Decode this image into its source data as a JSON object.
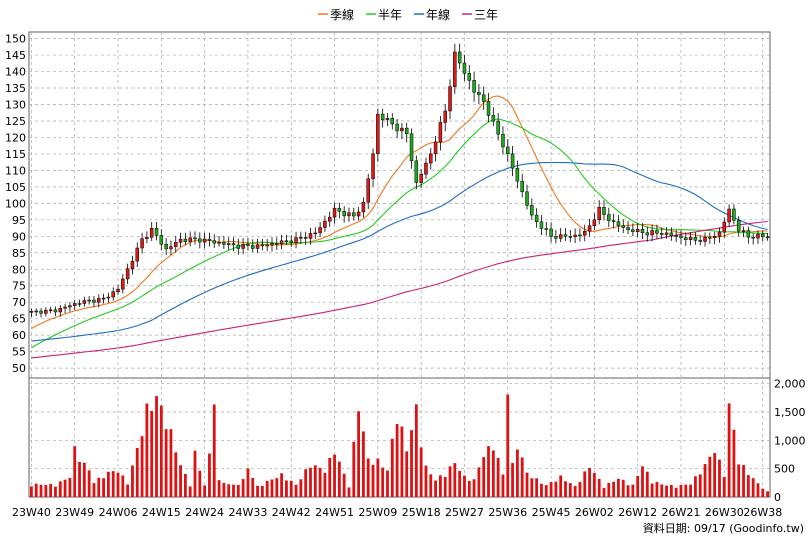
{
  "legend": [
    {
      "label": "季線",
      "color": "#f07820"
    },
    {
      "label": "半年",
      "color": "#22cc22"
    },
    {
      "label": "年線",
      "color": "#1f6fc4"
    },
    {
      "label": "三年",
      "color": "#cc2277"
    }
  ],
  "source_label": "資料日期: 09/17  (Goodinfo.tw)",
  "colors": {
    "up": "#e01818",
    "down": "#1caa1c",
    "volume": "#dd1111",
    "grid": "#a8a8a8",
    "frame": "#606060"
  },
  "chart_data": {
    "type": "candlestick",
    "price_axis": {
      "ticks": [
        50,
        55,
        60,
        65,
        70,
        75,
        80,
        85,
        90,
        95,
        100,
        105,
        110,
        115,
        120,
        125,
        130,
        135,
        140,
        145,
        150
      ],
      "range": [
        47,
        152
      ]
    },
    "volume_axis": {
      "ticks": [
        0,
        500,
        1000,
        1500,
        2000
      ],
      "tick_labels": [
        "0",
        "500",
        "1,000",
        "1,500",
        "2,000"
      ],
      "range": [
        0,
        2100
      ]
    },
    "x_axis": {
      "labels": [
        "23W40",
        "23W49",
        "24W06",
        "24W15",
        "24W24",
        "24W33",
        "24W42",
        "24W51",
        "25W09",
        "25W18",
        "25W27",
        "25W36",
        "25W45",
        "26W02",
        "26W12",
        "26W21",
        "26W30",
        "26W38"
      ],
      "label_week_index": [
        0,
        9,
        18,
        27,
        36,
        45,
        54,
        63,
        72,
        81,
        90,
        99,
        108,
        117,
        126,
        135,
        144,
        152
      ],
      "weeks": 154
    },
    "price_anchors": [
      [
        0,
        67
      ],
      [
        5,
        67.5
      ],
      [
        10,
        70
      ],
      [
        15,
        71
      ],
      [
        18,
        74
      ],
      [
        20,
        80
      ],
      [
        23,
        89
      ],
      [
        25,
        92
      ],
      [
        28,
        86
      ],
      [
        31,
        89
      ],
      [
        35,
        89
      ],
      [
        39,
        88
      ],
      [
        43,
        87
      ],
      [
        47,
        87
      ],
      [
        51,
        88
      ],
      [
        55,
        89
      ],
      [
        59,
        91
      ],
      [
        63,
        98
      ],
      [
        67,
        96
      ],
      [
        69,
        100
      ],
      [
        71,
        115
      ],
      [
        72,
        127
      ],
      [
        75,
        124
      ],
      [
        78,
        121
      ],
      [
        80,
        106
      ],
      [
        83,
        115
      ],
      [
        86,
        128
      ],
      [
        88,
        145
      ],
      [
        90,
        140
      ],
      [
        92,
        134
      ],
      [
        94,
        131
      ],
      [
        96,
        124
      ],
      [
        98,
        118
      ],
      [
        101,
        107
      ],
      [
        104,
        96
      ],
      [
        106,
        93
      ],
      [
        108,
        90
      ],
      [
        112,
        90
      ],
      [
        115,
        91
      ],
      [
        118,
        98
      ],
      [
        121,
        94
      ],
      [
        124,
        92
      ],
      [
        128,
        91
      ],
      [
        131,
        91
      ],
      [
        134,
        90
      ],
      [
        137,
        89
      ],
      [
        140,
        89
      ],
      [
        143,
        91
      ],
      [
        145,
        98
      ],
      [
        147,
        92
      ],
      [
        149,
        90
      ],
      [
        153,
        90
      ]
    ],
    "volume_anchors": [
      [
        0,
        240
      ],
      [
        5,
        230
      ],
      [
        8,
        380
      ],
      [
        9,
        900
      ],
      [
        11,
        620
      ],
      [
        12,
        500
      ],
      [
        13,
        280
      ],
      [
        16,
        460
      ],
      [
        18,
        500
      ],
      [
        20,
        260
      ],
      [
        22,
        900
      ],
      [
        24,
        1650
      ],
      [
        26,
        1880
      ],
      [
        28,
        1450
      ],
      [
        29,
        1200
      ],
      [
        31,
        600
      ],
      [
        33,
        230
      ],
      [
        34,
        820
      ],
      [
        36,
        220
      ],
      [
        37,
        780
      ],
      [
        38,
        2060
      ],
      [
        39,
        300
      ],
      [
        42,
        220
      ],
      [
        44,
        320
      ],
      [
        45,
        550
      ],
      [
        47,
        200
      ],
      [
        52,
        420
      ],
      [
        55,
        230
      ],
      [
        58,
        620
      ],
      [
        61,
        500
      ],
      [
        63,
        880
      ],
      [
        66,
        200
      ],
      [
        68,
        1750
      ],
      [
        70,
        700
      ],
      [
        72,
        680
      ],
      [
        74,
        500
      ],
      [
        76,
        1600
      ],
      [
        78,
        900
      ],
      [
        80,
        1660
      ],
      [
        82,
        560
      ],
      [
        84,
        320
      ],
      [
        86,
        450
      ],
      [
        88,
        650
      ],
      [
        90,
        380
      ],
      [
        92,
        320
      ],
      [
        94,
        800
      ],
      [
        96,
        1000
      ],
      [
        98,
        420
      ],
      [
        99,
        2090
      ],
      [
        100,
        600
      ],
      [
        101,
        1000
      ],
      [
        103,
        450
      ],
      [
        105,
        330
      ],
      [
        107,
        220
      ],
      [
        110,
        380
      ],
      [
        113,
        200
      ],
      [
        116,
        580
      ],
      [
        119,
        200
      ],
      [
        122,
        350
      ],
      [
        125,
        220
      ],
      [
        127,
        600
      ],
      [
        129,
        300
      ],
      [
        131,
        240
      ],
      [
        134,
        200
      ],
      [
        137,
        250
      ],
      [
        140,
        600
      ],
      [
        142,
        900
      ],
      [
        144,
        420
      ],
      [
        145,
        1720
      ],
      [
        146,
        1240
      ],
      [
        147,
        680
      ],
      [
        149,
        450
      ],
      [
        151,
        250
      ],
      [
        153,
        100
      ]
    ]
  }
}
